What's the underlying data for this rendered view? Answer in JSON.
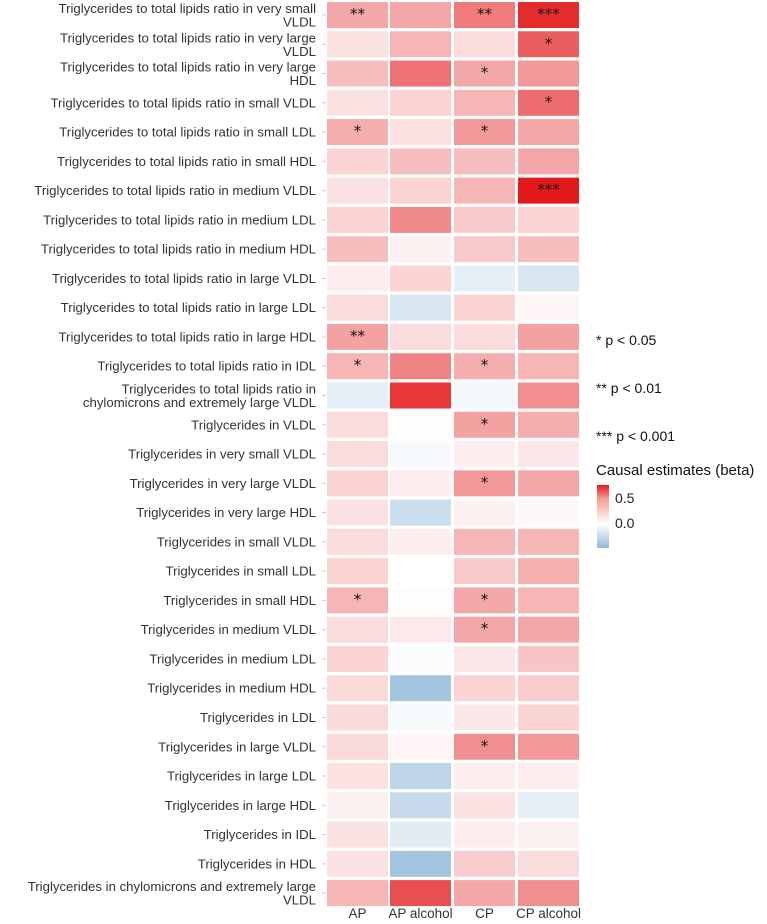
{
  "chart_data": {
    "type": "heatmap",
    "title": "",
    "xlabel": "",
    "ylabel": "",
    "columns": [
      "AP",
      "AP alcohol",
      "CP",
      "CP alcohol"
    ],
    "rows": [
      "Triglycerides to total lipids ratio in very small VLDL",
      "Triglycerides to total lipids ratio in very large VLDL",
      "Triglycerides to total lipids ratio in very large HDL",
      "Triglycerides to total lipids ratio in small VLDL",
      "Triglycerides to total lipids ratio in small LDL",
      "Triglycerides to total lipids ratio in small HDL",
      "Triglycerides to total lipids ratio in medium VLDL",
      "Triglycerides to total lipids ratio in medium LDL",
      "Triglycerides to total lipids ratio in medium HDL",
      "Triglycerides to total lipids ratio in large VLDL",
      "Triglycerides to total lipids ratio in large LDL",
      "Triglycerides to total lipids ratio in large HDL",
      "Triglycerides to total lipids ratio in IDL",
      "Triglycerides to total lipids ratio in chylomicrons and extremely large VLDL",
      "Triglycerides in VLDL",
      "Triglycerides in very small VLDL",
      "Triglycerides in very large VLDL",
      "Triglycerides in very large HDL",
      "Triglycerides in small VLDL",
      "Triglycerides in small LDL",
      "Triglycerides in small HDL",
      "Triglycerides in medium VLDL",
      "Triglycerides in medium LDL",
      "Triglycerides in medium HDL",
      "Triglycerides in LDL",
      "Triglycerides in large VLDL",
      "Triglycerides in large LDL",
      "Triglycerides in large HDL",
      "Triglycerides in IDL",
      "Triglycerides in HDL",
      "Triglycerides in chylomicrons and extremely large VLDL"
    ],
    "row_label_lines": [
      [
        "Triglycerides to total lipids ratio in very small",
        "VLDL"
      ],
      [
        "Triglycerides to total lipids ratio in very large",
        "VLDL"
      ],
      [
        "Triglycerides to total lipids ratio in very large",
        "HDL"
      ],
      [
        "Triglycerides to total lipids ratio in small VLDL"
      ],
      [
        "Triglycerides to total lipids ratio in small LDL"
      ],
      [
        "Triglycerides to total lipids ratio in small HDL"
      ],
      [
        "Triglycerides to total lipids ratio in medium VLDL"
      ],
      [
        "Triglycerides to total lipids ratio in medium LDL"
      ],
      [
        "Triglycerides to total lipids ratio in medium HDL"
      ],
      [
        "Triglycerides to total lipids ratio in large VLDL"
      ],
      [
        "Triglycerides to total lipids ratio in large LDL"
      ],
      [
        "Triglycerides to total lipids ratio in large HDL"
      ],
      [
        "Triglycerides to total lipids ratio in IDL"
      ],
      [
        "Triglycerides to total lipids ratio in",
        "chylomicrons and extremely large VLDL"
      ],
      [
        "Triglycerides in VLDL"
      ],
      [
        "Triglycerides in very small VLDL"
      ],
      [
        "Triglycerides in very large VLDL"
      ],
      [
        "Triglycerides in very large HDL"
      ],
      [
        "Triglycerides in small VLDL"
      ],
      [
        "Triglycerides in small LDL"
      ],
      [
        "Triglycerides in small HDL"
      ],
      [
        "Triglycerides in medium VLDL"
      ],
      [
        "Triglycerides in medium LDL"
      ],
      [
        "Triglycerides in medium HDL"
      ],
      [
        "Triglycerides in LDL"
      ],
      [
        "Triglycerides in large VLDL"
      ],
      [
        "Triglycerides in large LDL"
      ],
      [
        "Triglycerides in large HDL"
      ],
      [
        "Triglycerides in IDL"
      ],
      [
        "Triglycerides in HDL"
      ],
      [
        "Triglycerides in chylomicrons and extremely large",
        "VLDL"
      ]
    ],
    "values": [
      [
        0.3,
        0.3,
        0.45,
        0.72
      ],
      [
        0.1,
        0.25,
        0.12,
        0.55
      ],
      [
        0.22,
        0.48,
        0.3,
        0.35
      ],
      [
        0.1,
        0.15,
        0.25,
        0.5
      ],
      [
        0.28,
        0.1,
        0.35,
        0.3
      ],
      [
        0.15,
        0.22,
        0.22,
        0.3
      ],
      [
        0.1,
        0.15,
        0.25,
        0.78
      ],
      [
        0.15,
        0.4,
        0.18,
        0.15
      ],
      [
        0.22,
        0.05,
        0.18,
        0.22
      ],
      [
        0.06,
        0.15,
        -0.1,
        -0.15
      ],
      [
        0.12,
        -0.15,
        0.15,
        0.03
      ],
      [
        0.32,
        0.12,
        0.12,
        0.32
      ],
      [
        0.25,
        0.42,
        0.28,
        0.25
      ],
      [
        -0.1,
        0.68,
        -0.05,
        0.38
      ],
      [
        0.12,
        0.01,
        0.32,
        0.28
      ],
      [
        0.12,
        -0.03,
        0.06,
        0.08
      ],
      [
        0.15,
        0.06,
        0.35,
        0.3
      ],
      [
        0.1,
        -0.2,
        0.05,
        0.02
      ],
      [
        0.12,
        0.06,
        0.25,
        0.25
      ],
      [
        0.15,
        0.0,
        0.18,
        0.27
      ],
      [
        0.25,
        0.01,
        0.3,
        0.25
      ],
      [
        0.12,
        0.07,
        0.3,
        0.3
      ],
      [
        0.15,
        -0.02,
        0.08,
        0.2
      ],
      [
        0.13,
        -0.35,
        0.15,
        0.17
      ],
      [
        0.13,
        -0.03,
        0.08,
        0.15
      ],
      [
        0.13,
        0.03,
        0.38,
        0.35
      ],
      [
        0.1,
        -0.25,
        0.06,
        0.06
      ],
      [
        0.05,
        -0.22,
        0.1,
        -0.1
      ],
      [
        0.1,
        -0.12,
        0.06,
        0.05
      ],
      [
        0.1,
        -0.35,
        0.17,
        0.12
      ],
      [
        0.25,
        0.6,
        0.3,
        0.38
      ]
    ],
    "significance": [
      [
        "**",
        "",
        "**",
        "***"
      ],
      [
        "",
        "",
        "",
        "*"
      ],
      [
        "",
        "",
        "*",
        ""
      ],
      [
        "",
        "",
        "",
        "*"
      ],
      [
        "*",
        "",
        "*",
        ""
      ],
      [
        "",
        "",
        "",
        ""
      ],
      [
        "",
        "",
        "",
        "***"
      ],
      [
        "",
        "",
        "",
        ""
      ],
      [
        "",
        "",
        "",
        ""
      ],
      [
        "",
        "",
        "",
        ""
      ],
      [
        "",
        "",
        "",
        ""
      ],
      [
        "**",
        "",
        "",
        ""
      ],
      [
        "*",
        "",
        "*",
        ""
      ],
      [
        "",
        "",
        "",
        ""
      ],
      [
        "",
        "",
        "*",
        ""
      ],
      [
        "",
        "",
        "",
        ""
      ],
      [
        "",
        "",
        "*",
        ""
      ],
      [
        "",
        "",
        "",
        ""
      ],
      [
        "",
        "",
        "",
        ""
      ],
      [
        "",
        "",
        "",
        ""
      ],
      [
        "*",
        "",
        "*",
        ""
      ],
      [
        "",
        "",
        "*",
        ""
      ],
      [
        "",
        "",
        "",
        ""
      ],
      [
        "",
        "",
        "",
        ""
      ],
      [
        "",
        "",
        "",
        ""
      ],
      [
        "",
        "",
        "*",
        ""
      ],
      [
        "",
        "",
        "",
        ""
      ],
      [
        "",
        "",
        "",
        ""
      ],
      [
        "",
        "",
        "",
        ""
      ],
      [
        "",
        "",
        "",
        ""
      ],
      [
        "",
        "",
        "",
        ""
      ]
    ],
    "color_range": [
      -0.42,
      0.78
    ],
    "colors": {
      "low": "#92b9d9",
      "mid": "#ffffff",
      "high": "#e31a1c"
    },
    "legend": {
      "title": "Causal estimates (beta)",
      "ticks": [
        "0.5",
        "0.0"
      ],
      "placement": "right",
      "significance_keys": [
        "* p < 0.05",
        "** p < 0.01",
        "*** p < 0.001"
      ]
    }
  }
}
